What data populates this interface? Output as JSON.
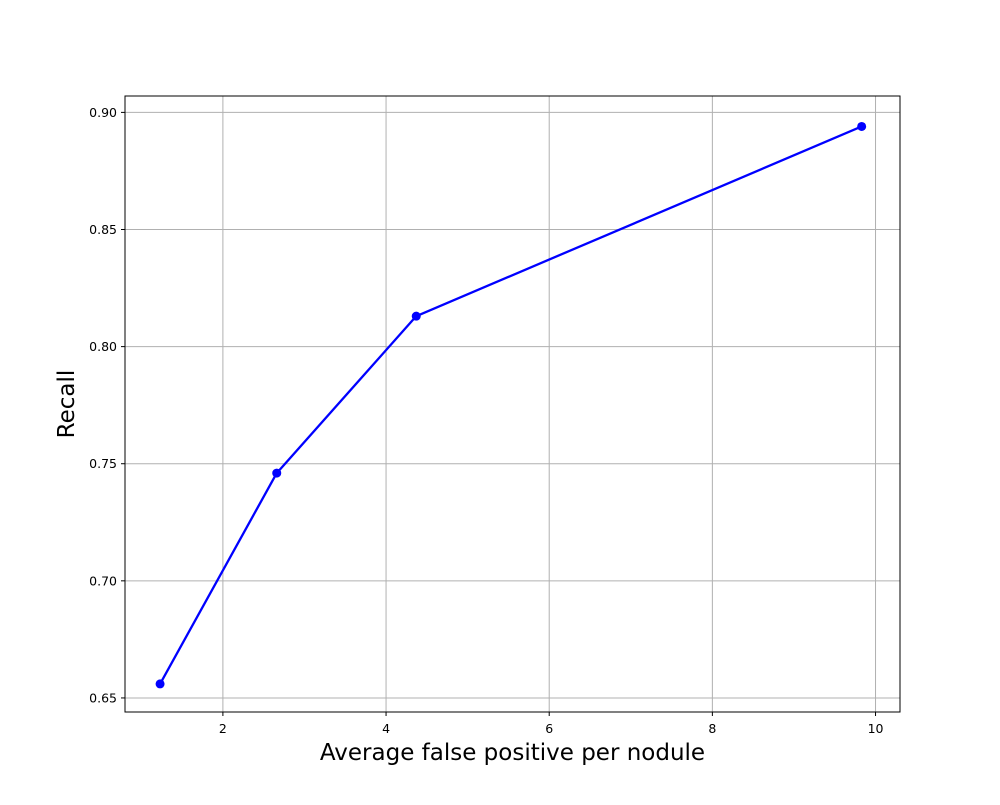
{
  "chart_data": {
    "type": "line",
    "title": "",
    "xlabel": "Average false positive per nodule",
    "ylabel": "Recall",
    "xlim": [
      0.8,
      10.3
    ],
    "ylim": [
      0.644,
      0.907
    ],
    "x_ticks": [
      2,
      4,
      6,
      8,
      10
    ],
    "y_ticks": [
      0.65,
      0.7,
      0.75,
      0.8,
      0.85,
      0.9
    ],
    "x_tick_labels": [
      "2",
      "4",
      "6",
      "8",
      "10"
    ],
    "y_tick_labels": [
      "0.65",
      "0.70",
      "0.75",
      "0.80",
      "0.85",
      "0.90"
    ],
    "grid": true,
    "series": [
      {
        "x": [
          1.23,
          2.66,
          4.37,
          9.83
        ],
        "y": [
          0.656,
          0.746,
          0.813,
          0.894
        ],
        "color": "#0000ff",
        "marker": "circle"
      }
    ]
  }
}
